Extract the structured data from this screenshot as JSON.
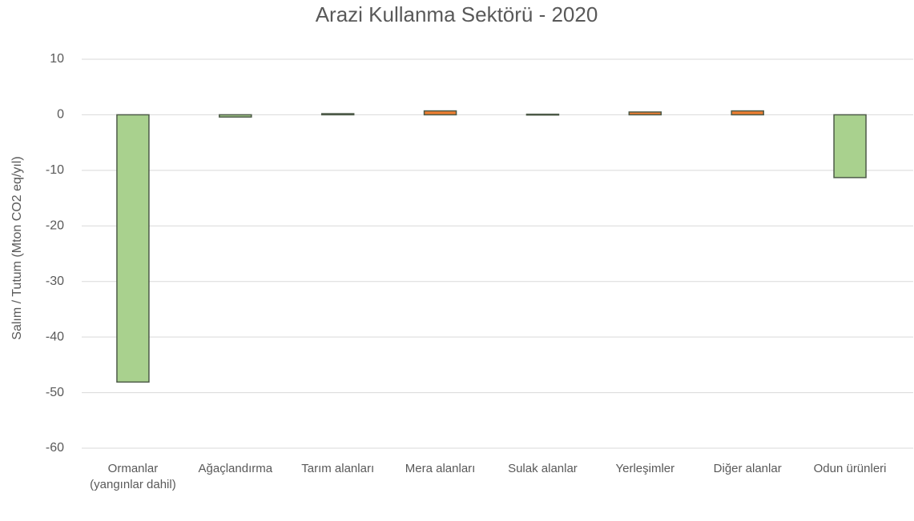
{
  "chart_data": {
    "type": "bar",
    "title": "Arazi Kullanma Sektörü - 2020",
    "ylabel": "Salım / Tutum (Mton CO2 eq/yıl)",
    "categories": [
      "Ormanlar (yangınlar dahil)",
      "Ağaçlandırma",
      "Tarım alanları",
      "Mera alanları",
      "Sulak alanlar",
      "Yerleşimler",
      "Diğer alanlar",
      "Odun ürünleri"
    ],
    "values": [
      -48.1,
      -0.4,
      0.2,
      0.7,
      0.1,
      0.5,
      0.7,
      -11.3
    ],
    "colors": [
      "#a9d18e",
      "#a9d18e",
      "#a9d18e",
      "#ed7d31",
      "#a9d18e",
      "#ed7d31",
      "#ed7d31",
      "#a9d18e"
    ],
    "ylim": [
      -60,
      10
    ],
    "yticks": [
      -60,
      -50,
      -40,
      -30,
      -20,
      -10,
      0,
      10
    ],
    "grid": true
  }
}
